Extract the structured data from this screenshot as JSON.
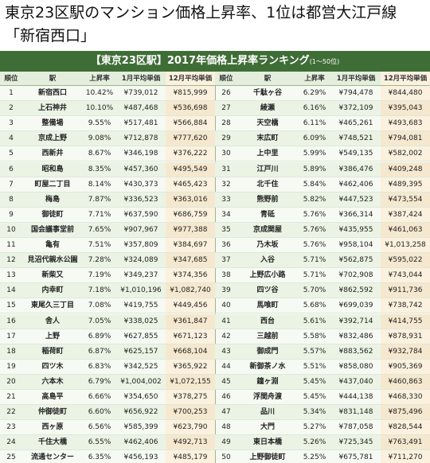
{
  "title_lines": [
    "東京23区駅のマンション価格上昇率、1位は都営大江戸線",
    "「新宿西口」"
  ],
  "table": {
    "heading": "【東京23区駅】2017年価格上昇率ランキング",
    "heading_note": "(1～50位)",
    "columns": [
      "順位",
      "駅",
      "上昇率",
      "1月平均単価",
      "12月平均単価"
    ],
    "rows": [
      [
        1,
        "新宿西口",
        "10.42%",
        "¥739,012",
        "¥815,999"
      ],
      [
        2,
        "上石神井",
        "10.10%",
        "¥487,468",
        "¥536,698"
      ],
      [
        3,
        "整備場",
        "9.55%",
        "¥517,481",
        "¥566,884"
      ],
      [
        4,
        "京成上野",
        "9.08%",
        "¥712,878",
        "¥777,620"
      ],
      [
        5,
        "西新井",
        "8.67%",
        "¥346,198",
        "¥376,222"
      ],
      [
        6,
        "昭和島",
        "8.35%",
        "¥457,360",
        "¥495,549"
      ],
      [
        7,
        "町屋二丁目",
        "8.14%",
        "¥430,373",
        "¥465,423"
      ],
      [
        8,
        "梅島",
        "7.87%",
        "¥336,523",
        "¥363,016"
      ],
      [
        9,
        "御徒町",
        "7.71%",
        "¥637,590",
        "¥686,759"
      ],
      [
        10,
        "国会議事堂前",
        "7.65%",
        "¥907,967",
        "¥977,388"
      ],
      [
        11,
        "亀有",
        "7.51%",
        "¥357,809",
        "¥384,697"
      ],
      [
        12,
        "見沼代親水公園",
        "7.28%",
        "¥324,089",
        "¥347,685"
      ],
      [
        13,
        "新柴又",
        "7.19%",
        "¥349,237",
        "¥374,356"
      ],
      [
        14,
        "内幸町",
        "7.18%",
        "¥1,010,196",
        "¥1,082,740"
      ],
      [
        15,
        "東尾久三丁目",
        "7.08%",
        "¥419,755",
        "¥449,456"
      ],
      [
        16,
        "舎人",
        "7.05%",
        "¥338,025",
        "¥361,847"
      ],
      [
        17,
        "上野",
        "6.89%",
        "¥627,855",
        "¥671,123"
      ],
      [
        18,
        "稲荷町",
        "6.87%",
        "¥625,157",
        "¥668,104"
      ],
      [
        19,
        "四ツ木",
        "6.83%",
        "¥342,525",
        "¥365,922"
      ],
      [
        20,
        "六本木",
        "6.79%",
        "¥1,004,002",
        "¥1,072,155"
      ],
      [
        21,
        "高島平",
        "6.66%",
        "¥354,650",
        "¥378,275"
      ],
      [
        22,
        "仲御徒町",
        "6.60%",
        "¥656,922",
        "¥700,253"
      ],
      [
        23,
        "西ヶ原",
        "6.56%",
        "¥585,399",
        "¥623,790"
      ],
      [
        24,
        "千住大橋",
        "6.55%",
        "¥462,406",
        "¥492,713"
      ],
      [
        25,
        "流通センター",
        "6.35%",
        "¥456,193",
        "¥485,179"
      ],
      [
        26,
        "千駄ヶ谷",
        "6.29%",
        "¥794,478",
        "¥844,480"
      ],
      [
        27,
        "綾瀬",
        "6.16%",
        "¥372,109",
        "¥395,043"
      ],
      [
        28,
        "天空橋",
        "6.11%",
        "¥465,261",
        "¥493,683"
      ],
      [
        29,
        "末広町",
        "6.09%",
        "¥748,521",
        "¥794,081"
      ],
      [
        30,
        "上中里",
        "5.99%",
        "¥549,135",
        "¥582,002"
      ],
      [
        31,
        "江戸川",
        "5.89%",
        "¥386,476",
        "¥409,248"
      ],
      [
        32,
        "北千住",
        "5.84%",
        "¥462,406",
        "¥489,395"
      ],
      [
        33,
        "熊野前",
        "5.82%",
        "¥447,523",
        "¥473,554"
      ],
      [
        34,
        "青砥",
        "5.76%",
        "¥366,314",
        "¥387,424"
      ],
      [
        35,
        "京成関屋",
        "5.76%",
        "¥435,955",
        "¥461,063"
      ],
      [
        36,
        "乃木坂",
        "5.76%",
        "¥958,104",
        "¥1,013,258"
      ],
      [
        37,
        "入谷",
        "5.71%",
        "¥562,875",
        "¥595,022"
      ],
      [
        38,
        "上野広小路",
        "5.71%",
        "¥702,908",
        "¥743,044"
      ],
      [
        39,
        "四ツ谷",
        "5.70%",
        "¥862,592",
        "¥911,736"
      ],
      [
        40,
        "馬喰町",
        "5.68%",
        "¥699,039",
        "¥738,742"
      ],
      [
        41,
        "西台",
        "5.61%",
        "¥392,714",
        "¥414,755"
      ],
      [
        42,
        "三越前",
        "5.58%",
        "¥832,486",
        "¥878,931"
      ],
      [
        43,
        "御成門",
        "5.57%",
        "¥883,562",
        "¥932,784"
      ],
      [
        44,
        "新御茶ノ水",
        "5.51%",
        "¥858,080",
        "¥905,369"
      ],
      [
        45,
        "鐘ヶ淵",
        "5.45%",
        "¥437,040",
        "¥460,863"
      ],
      [
        46,
        "浮間舟渡",
        "5.45%",
        "¥444,138",
        "¥468,330"
      ],
      [
        47,
        "品川",
        "5.34%",
        "¥831,148",
        "¥875,496"
      ],
      [
        48,
        "大門",
        "5.27%",
        "¥787,058",
        "¥828,544"
      ],
      [
        49,
        "東日本橋",
        "5.26%",
        "¥725,345",
        "¥763,491"
      ],
      [
        50,
        "上野御徒町",
        "5.25%",
        "¥675,781",
        "¥711,270"
      ]
    ]
  }
}
